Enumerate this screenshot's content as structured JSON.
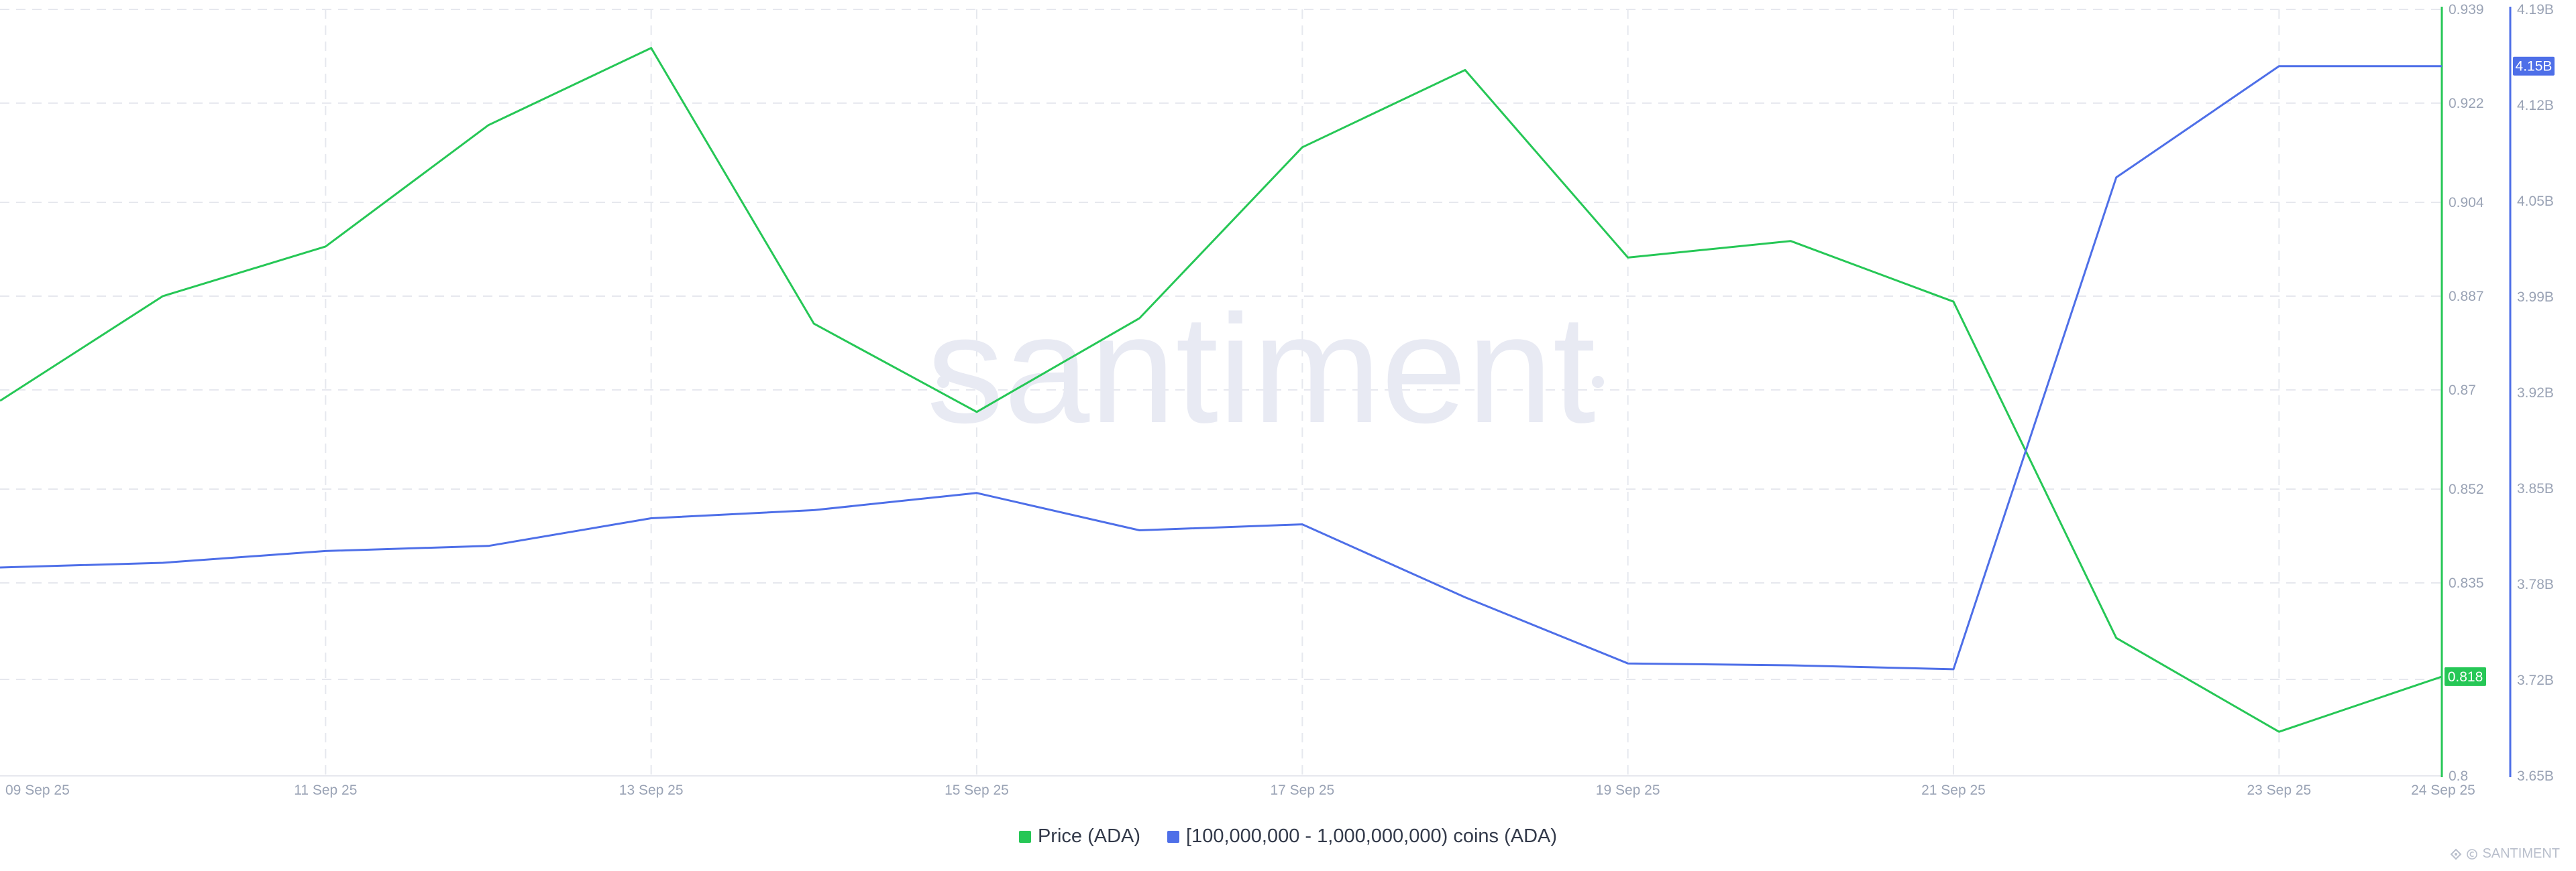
{
  "chart_data": {
    "type": "line",
    "x": [
      "09 Sep 25",
      "10 Sep 25",
      "11 Sep 25",
      "12 Sep 25",
      "13 Sep 25",
      "14 Sep 25",
      "15 Sep 25",
      "16 Sep 25",
      "17 Sep 25",
      "18 Sep 25",
      "19 Sep 25",
      "20 Sep 25",
      "21 Sep 25",
      "22 Sep 25",
      "23 Sep 25",
      "24 Sep 25"
    ],
    "x_tick_labels": [
      "09 Sep 25",
      "11 Sep 25",
      "13 Sep 25",
      "15 Sep 25",
      "17 Sep 25",
      "19 Sep 25",
      "21 Sep 25",
      "23 Sep 25",
      "24 Sep 25"
    ],
    "series": [
      {
        "name": "Price (ADA)",
        "axis": "left",
        "color": "#26c756",
        "values": [
          0.868,
          0.887,
          0.896,
          0.918,
          0.932,
          0.882,
          0.866,
          0.883,
          0.914,
          0.928,
          0.894,
          0.897,
          0.886,
          0.825,
          0.808,
          0.818
        ],
        "last_value_label": "0.818"
      },
      {
        "name": "[100,000,000 - 1,000,000,000) coins (ADA)",
        "axis": "right",
        "color": "#4e6fe8",
        "values": [
          3.7968,
          3.8001,
          3.8084,
          3.812,
          3.8315,
          3.8372,
          3.8493,
          3.823,
          3.8272,
          3.7758,
          3.7292,
          3.7279,
          3.7251,
          4.0716,
          4.15,
          4.15
        ],
        "last_value_label": "4.15B"
      }
    ],
    "y_left": {
      "ylim": [
        0.8,
        0.939
      ],
      "tick_labels": [
        "0.939",
        "0.922",
        "0.904",
        "0.887",
        "0.87",
        "0.852",
        "0.835",
        "0.818",
        "0.8"
      ],
      "tick_values": [
        0.939,
        0.922,
        0.904,
        0.887,
        0.87,
        0.852,
        0.835,
        0.8175,
        0.8
      ]
    },
    "y_right": {
      "ylim": [
        3.65,
        4.19
      ],
      "tick_labels": [
        "4.19B",
        "4.12B",
        "4.05B",
        "3.99B",
        "3.92B",
        "3.85B",
        "3.78B",
        "3.72B",
        "3.65B"
      ],
      "tick_values": [
        4.19,
        4.1225,
        4.055,
        3.9875,
        3.92,
        3.8525,
        3.785,
        3.7175,
        3.65
      ]
    },
    "grid": true,
    "legend_position": "bottom-center"
  },
  "watermark": "santiment",
  "brand": "SANTIMENT"
}
